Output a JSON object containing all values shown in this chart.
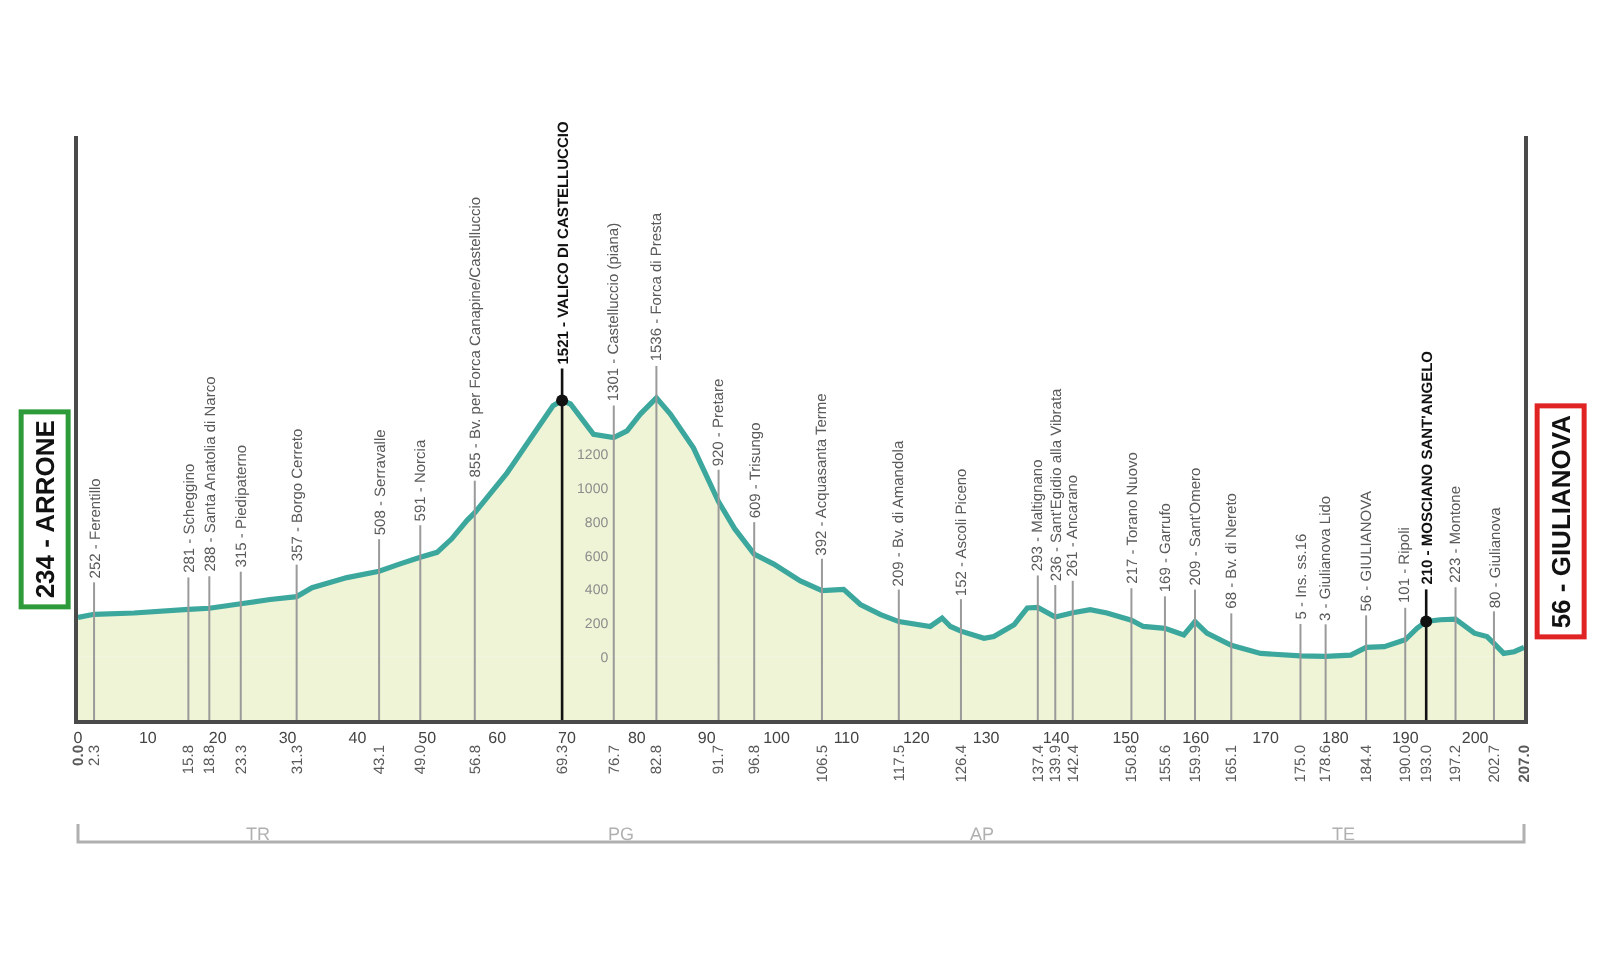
{
  "chart_data": {
    "type": "area",
    "x": [
      0,
      2.3,
      8,
      15.8,
      18.8,
      23.3,
      27.5,
      31.3,
      33.5,
      38.5,
      43.1,
      46,
      49.0,
      51.4,
      53.5,
      55.7,
      56.8,
      61.4,
      65.2,
      68.0,
      69.3,
      70.5,
      73.8,
      76.7,
      78.6,
      80.5,
      82.8,
      84.8,
      88.1,
      91.7,
      94,
      96.8,
      99.6,
      103.4,
      106.5,
      109.6,
      112,
      114.9,
      117.5,
      122,
      123.7,
      124.9,
      126.4,
      129.7,
      131.1,
      134,
      135.9,
      137.4,
      139.9,
      142.4,
      144.9,
      147.3,
      150.8,
      152.5,
      155.6,
      158.3,
      159.9,
      161.6,
      165.1,
      169.3,
      175.0,
      178.6,
      182.2,
      184.4,
      187,
      190.0,
      191.7,
      193.0,
      195,
      197.2,
      199.9,
      201.7,
      202.7,
      204.1,
      205.6,
      207.0
    ],
    "series": [
      {
        "color": "#3ba79d",
        "values": [
          234,
          252,
          260,
          281,
          288,
          315,
          340,
          357,
          410,
          470,
          508,
          550,
          591,
          620,
          700,
          810,
          855,
          1090,
          1320,
          1490,
          1521,
          1500,
          1320,
          1301,
          1340,
          1440,
          1536,
          1440,
          1240,
          920,
          760,
          609,
          550,
          450,
          392,
          400,
          310,
          250,
          209,
          180,
          230,
          180,
          152,
          110,
          120,
          190,
          290,
          293,
          236,
          261,
          280,
          260,
          217,
          180,
          169,
          130,
          209,
          140,
          68,
          20,
          5,
          3,
          10,
          56,
          60,
          101,
          170,
          210,
          220,
          223,
          140,
          120,
          80,
          20,
          30,
          56
        ]
      },
      {
        "type": "scatter",
        "color": "#111111",
        "marker": "circle",
        "x": [
          69.3,
          193.0
        ],
        "values": [
          1521,
          210
        ]
      }
    ],
    "xlim": [
      0,
      207
    ],
    "xticks": [
      0,
      10,
      20,
      30,
      40,
      50,
      60,
      70,
      80,
      90,
      100,
      110,
      120,
      130,
      140,
      150,
      160,
      170,
      180,
      190,
      200
    ],
    "x2lim": [
      0,
      207
    ],
    "x2ticks": [
      {
        "value": 0,
        "label": "0.0"
      },
      2.3,
      15.8,
      18.8,
      23.3,
      31.3,
      43.1,
      {
        "value": 49,
        "label": "49.0"
      },
      56.8,
      69.3,
      76.7,
      82.8,
      91.7,
      96.8,
      106.5,
      117.5,
      126.4,
      137.4,
      139.9,
      142.4,
      150.8,
      155.6,
      159.9,
      165.1,
      {
        "value": 175,
        "label": "175.0"
      },
      178.6,
      184.4,
      {
        "value": 190,
        "label": "190.0"
      },
      {
        "value": 193,
        "label": "193.0"
      },
      197.2,
      202.7,
      {
        "value": 207,
        "label": "207.0"
      }
    ],
    "ylim": [
      -375,
      3090
    ],
    "yticks": [
      0,
      200,
      400,
      600,
      800,
      1000,
      1200
    ],
    "annotations": [
      {
        "text": "234 - ARRONE",
        "x": 0,
        "y": 234
      },
      {
        "text": "252 - Ferentillo",
        "x": 2.3,
        "y": 252
      },
      {
        "text": "281 - Scheggino",
        "x": 15.8,
        "y": 281
      },
      {
        "text": "288 - Santa Anatolia di Narco",
        "x": 18.8,
        "y": 288
      },
      {
        "text": "315 - Piedipaterno",
        "x": 23.3,
        "y": 315
      },
      {
        "text": "357 - Borgo Cerreto",
        "x": 31.3,
        "y": 357
      },
      {
        "text": "508 - Serravalle",
        "x": 43.1,
        "y": 508
      },
      {
        "text": "591 - Norcia",
        "x": 49.0,
        "y": 591
      },
      {
        "text": "855 - Bv. per Forca Canapine/Castelluccio",
        "x": 56.8,
        "y": 855
      },
      {
        "text": "1521 - VALICO DI CASTELLUCCIO",
        "x": 69.3,
        "y": 1521
      },
      {
        "text": "1301 - Castelluccio (piana)",
        "x": 76.7,
        "y": 1301
      },
      {
        "text": "1536 - Forca di Presta",
        "x": 82.8,
        "y": 1536
      },
      {
        "text": "920 - Pretare",
        "x": 91.7,
        "y": 920
      },
      {
        "text": "609 - Trisungo",
        "x": 96.8,
        "y": 609
      },
      {
        "text": "392 - Acquasanta Terme",
        "x": 106.5,
        "y": 392
      },
      {
        "text": "209 - Bv. di Amandola",
        "x": 117.5,
        "y": 209
      },
      {
        "text": "152 - Ascoli Piceno",
        "x": 126.4,
        "y": 152
      },
      {
        "text": "293 - Maltignano",
        "x": 137.4,
        "y": 293
      },
      {
        "text": "236 - Sant'Egidio alla Vibrata",
        "x": 139.9,
        "y": 236
      },
      {
        "text": "261 - Ancarano",
        "x": 142.4,
        "y": 261
      },
      {
        "text": "217 - Torano Nuovo",
        "x": 150.8,
        "y": 217
      },
      {
        "text": "169 - Garrufo",
        "x": 155.6,
        "y": 169
      },
      {
        "text": "209 - Sant'Omero",
        "x": 159.9,
        "y": 209
      },
      {
        "text": "68 - Bv. di Nereto",
        "x": 165.1,
        "y": 68
      },
      {
        "text": "5 - Ins. ss.16",
        "x": 175.0,
        "y": 5
      },
      {
        "text": "3 - Giulianova Lido",
        "x": 178.6,
        "y": 3
      },
      {
        "text": "56 - GIULIANOVA",
        "x": 184.4,
        "y": 56
      },
      {
        "text": "101 - Ripoli",
        "x": 190.0,
        "y": 101
      },
      {
        "text": "210 - MOSCIANO SANT'ANGELO",
        "x": 193.0,
        "y": 210
      },
      {
        "text": "223 - Montone",
        "x": 197.2,
        "y": 223
      },
      {
        "text": "80 - Giulianova",
        "x": 202.7,
        "y": 80
      },
      {
        "text": "56 - GIULIANOVA",
        "x": 207,
        "y": 56
      },
      "TR",
      "PG",
      "AP",
      "TE"
    ],
    "bands": [
      {
        "axis": "y",
        "from": -375,
        "to": 0,
        "color": "#eff4d6"
      }
    ]
  }
}
